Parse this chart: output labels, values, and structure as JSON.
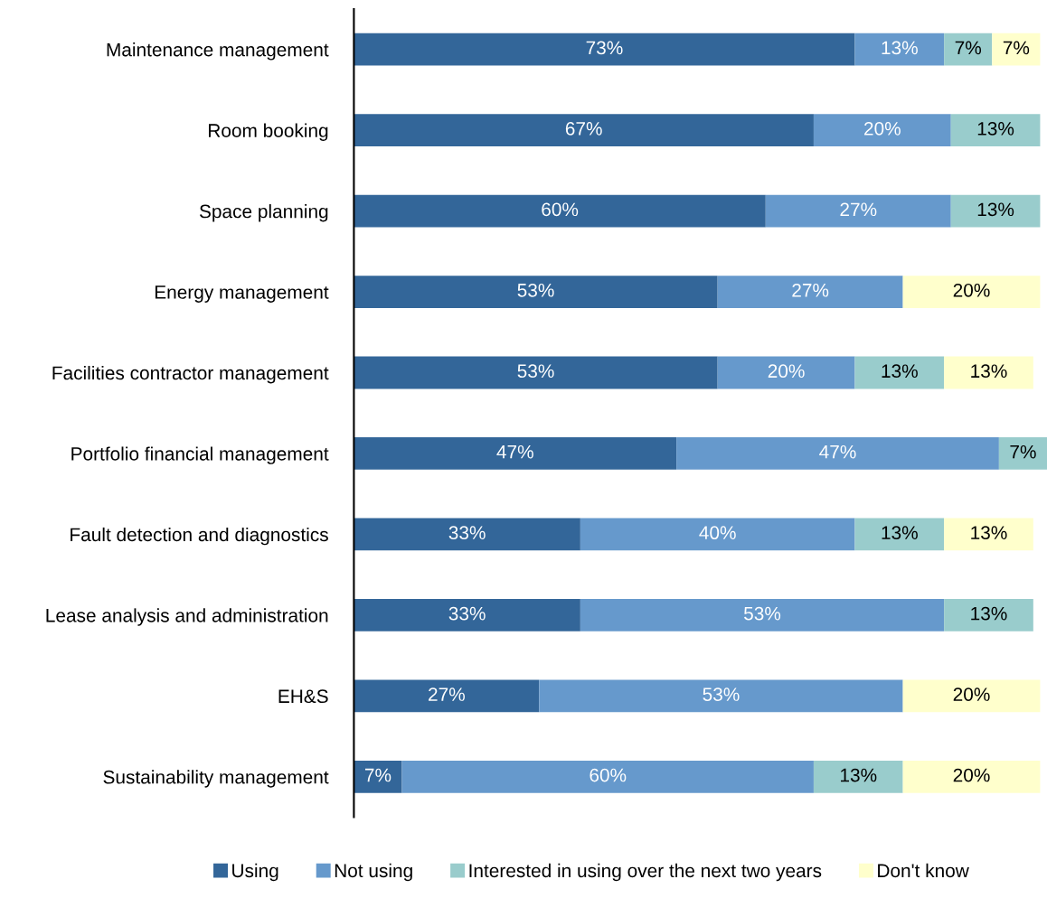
{
  "chart_data": {
    "type": "bar",
    "orientation": "horizontal",
    "stacked": true,
    "grid": false,
    "legend": "bottom",
    "tick_labels": "y",
    "categories": [
      "Maintenance management",
      "Room booking",
      "Space planning",
      "Energy management",
      "Facilities contractor management",
      "Portfolio financial management",
      "Fault detection and diagnostics",
      "Lease analysis and administration",
      "EH&S",
      "Sustainability management"
    ],
    "series": [
      {
        "name": "Using",
        "color": "#336699",
        "values": [
          73,
          67,
          60,
          53,
          53,
          47,
          33,
          33,
          27,
          7
        ],
        "value_labels": [
          "73%",
          "67%",
          "60%",
          "53%",
          "53%",
          "47%",
          "33%",
          "33%",
          "27%",
          "7%"
        ]
      },
      {
        "name": "Not using",
        "color": "#6699cc",
        "values": [
          13,
          20,
          27,
          27,
          20,
          47,
          40,
          53,
          53,
          60
        ],
        "value_labels": [
          "13%",
          "20%",
          "27%",
          "27%",
          "20%",
          "47%",
          "40%",
          "53%",
          "53%",
          "60%"
        ]
      },
      {
        "name": "Interested in using over the next two years",
        "color": "#99cccc",
        "values": [
          7,
          13,
          13,
          null,
          13,
          7,
          13,
          13,
          null,
          13
        ],
        "value_labels": [
          "7%",
          "13%",
          "13%",
          null,
          "13%",
          "7%",
          "13%",
          "13%",
          null,
          "13%"
        ]
      },
      {
        "name": "Don't know",
        "color": "#ffffcc",
        "values": [
          7,
          null,
          null,
          20,
          13,
          null,
          13,
          null,
          20,
          20
        ],
        "value_labels": [
          "7%",
          null,
          null,
          "20%",
          "13%",
          null,
          "13%",
          null,
          "20%",
          "20%"
        ]
      }
    ]
  }
}
